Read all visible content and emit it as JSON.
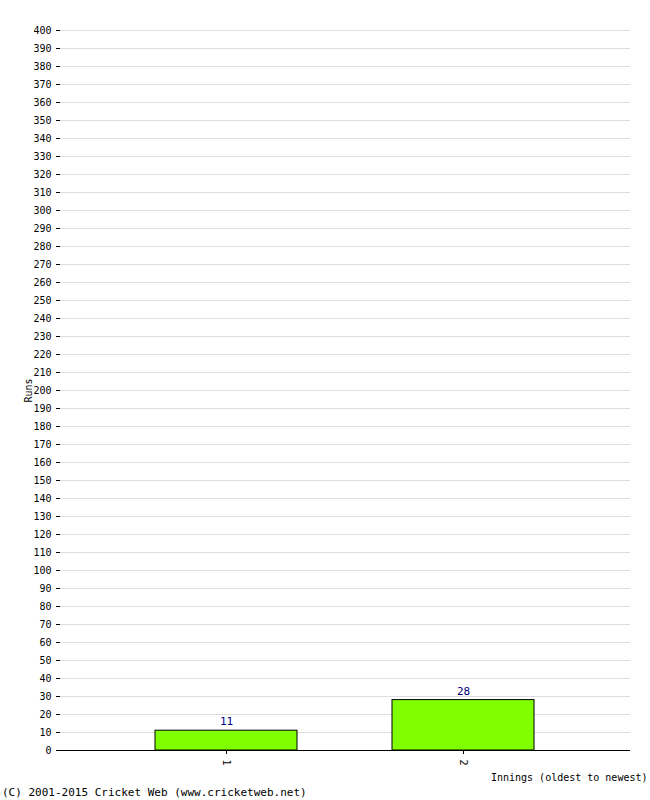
{
  "chart_data": {
    "type": "bar",
    "caption": "(C) 2001-2015 Cricket Web (www.cricketweb.net)",
    "x_label": "Innings (oldest to newest)",
    "y_label": "Runs",
    "categories": [
      "1",
      "2"
    ],
    "values": [
      11,
      28
    ],
    "color": "#80ff00",
    "ylim": [
      0,
      400
    ],
    "yticks": [
      0,
      10,
      20,
      30,
      40,
      50,
      60,
      70,
      80,
      90,
      100,
      110,
      120,
      130,
      140,
      150,
      160,
      170,
      180,
      190,
      200,
      210,
      220,
      230,
      240,
      250,
      260,
      270,
      280,
      290,
      300,
      310,
      320,
      330,
      340,
      350,
      360,
      370,
      380,
      390,
      400
    ],
    "grid": true,
    "data_labels": true
  }
}
